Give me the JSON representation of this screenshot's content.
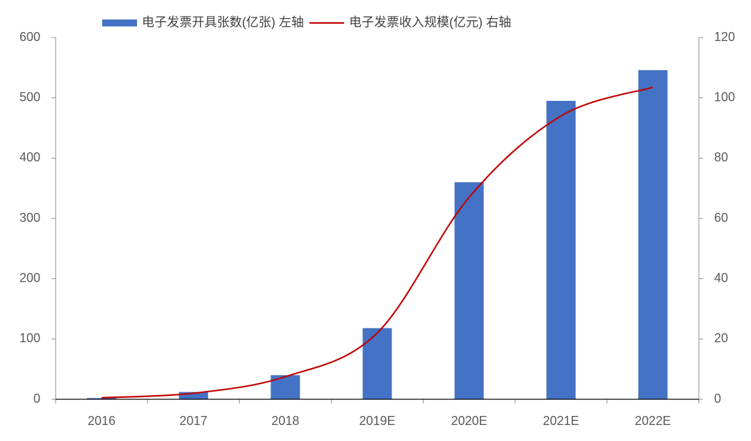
{
  "chart_data": {
    "type": "combo",
    "categories": [
      "2016",
      "2017",
      "2018",
      "2019E",
      "2020E",
      "2021E",
      "2022E"
    ],
    "series": [
      {
        "name": "电子发票开具张数(亿张) 左轴",
        "type": "bar",
        "color": "#4472c4",
        "values": [
          2,
          12,
          40,
          118,
          360,
          495,
          546
        ]
      },
      {
        "name": "电子发票收入规模(亿元) 右轴",
        "type": "line",
        "color": "#c00000",
        "axis": "y2",
        "values": [
          0.5,
          2,
          7.5,
          22,
          67,
          94,
          103.5
        ]
      }
    ],
    "ylim": [
      0,
      600
    ],
    "yticks": [
      0,
      100,
      200,
      300,
      400,
      500,
      600
    ],
    "y2lim": [
      0,
      120
    ],
    "y2ticks": [
      0,
      20,
      40,
      60,
      80,
      100,
      120
    ],
    "legend": "top"
  }
}
